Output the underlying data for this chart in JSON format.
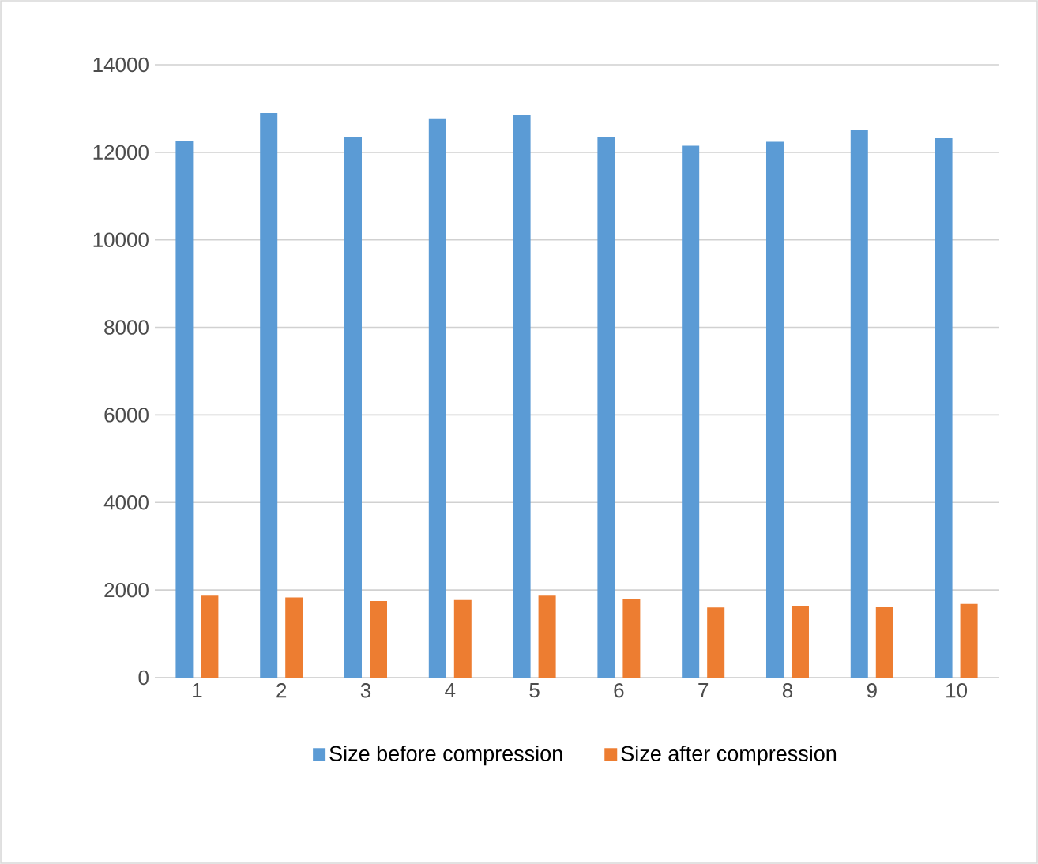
{
  "chart_data": {
    "type": "bar",
    "categories": [
      "1",
      "2",
      "3",
      "4",
      "5",
      "6",
      "7",
      "8",
      "9",
      "10"
    ],
    "series": [
      {
        "name": "Size before compression",
        "color": "#5b9bd5",
        "values": [
          12270,
          12900,
          12340,
          12760,
          12860,
          12350,
          12150,
          12240,
          12520,
          12320
        ]
      },
      {
        "name": "Size after compression",
        "color": "#ed7d31",
        "values": [
          1870,
          1830,
          1750,
          1770,
          1870,
          1800,
          1600,
          1640,
          1620,
          1680
        ]
      }
    ],
    "ylim": [
      0,
      14000
    ],
    "yticks": [
      0,
      2000,
      4000,
      6000,
      8000,
      10000,
      12000,
      14000
    ],
    "grid": "y",
    "legend": "bottom"
  }
}
